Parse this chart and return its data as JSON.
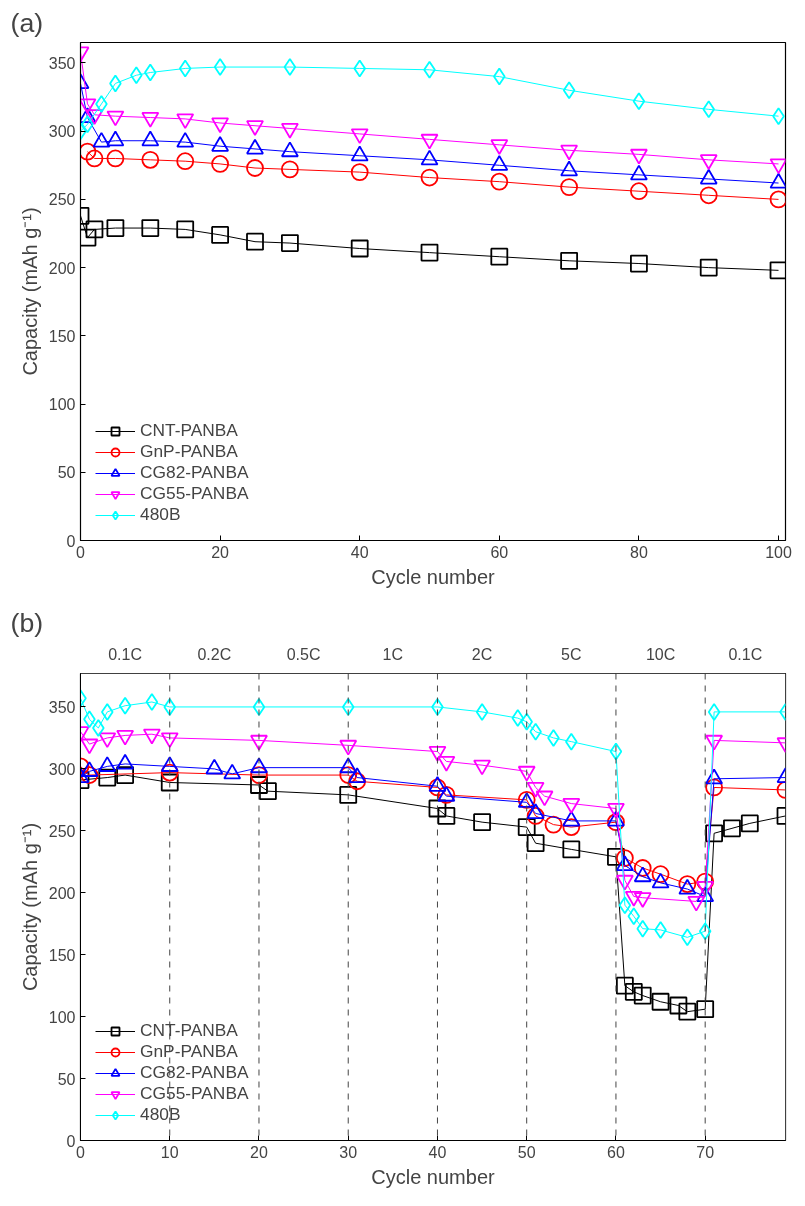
{
  "chart_data": [
    {
      "type": "line",
      "title": "(a)",
      "xlabel": "Cycle number",
      "ylabel": "Capacity (mAh g⁻¹)",
      "xlim": [
        0,
        101
      ],
      "ylim": [
        0,
        365
      ],
      "xticks": [
        0,
        20,
        40,
        60,
        80,
        100
      ],
      "yticks": [
        0,
        50,
        100,
        150,
        200,
        250,
        300,
        350
      ],
      "grid": false,
      "legend": "bottom left",
      "line_style": "solid",
      "series": [
        {
          "name": "CNT-PANBA",
          "color": "#000000",
          "marker": "square",
          "x": [
            0,
            1,
            2,
            5,
            10,
            15,
            20,
            25,
            30,
            40,
            50,
            60,
            70,
            80,
            90,
            100
          ],
          "values": [
            238,
            222,
            228,
            229,
            229,
            228,
            224,
            219,
            218,
            214,
            211,
            208,
            205,
            203,
            200,
            198
          ]
        },
        {
          "name": "GnP-PANBA",
          "color": "#ff0000",
          "marker": "circle",
          "x": [
            1,
            2,
            5,
            10,
            15,
            20,
            25,
            30,
            40,
            50,
            60,
            70,
            80,
            90,
            100
          ],
          "values": [
            285,
            280,
            280,
            279,
            278,
            276,
            273,
            272,
            270,
            266,
            263,
            259,
            256,
            253,
            250
          ]
        },
        {
          "name": "CG82-PANBA",
          "color": "#0000ff",
          "marker": "triangle",
          "x": [
            0,
            1,
            3,
            5,
            10,
            15,
            20,
            25,
            30,
            40,
            50,
            60,
            70,
            80,
            90,
            100
          ],
          "values": [
            335,
            310,
            292,
            293,
            293,
            292,
            289,
            287,
            285,
            282,
            279,
            275,
            271,
            268,
            265,
            262
          ]
        },
        {
          "name": "CG55-PANBA",
          "color": "#ff00ff",
          "marker": "triangle_down",
          "x": [
            0,
            1,
            2,
            5,
            10,
            15,
            20,
            25,
            30,
            40,
            50,
            60,
            70,
            80,
            90,
            100
          ],
          "values": [
            358,
            320,
            312,
            311,
            310,
            309,
            306,
            304,
            302,
            298,
            294,
            290,
            286,
            283,
            279,
            276
          ]
        },
        {
          "name": "480B",
          "color": "#00ffff",
          "marker": "diamond",
          "x": [
            0,
            1,
            3,
            5,
            8,
            10,
            15,
            20,
            30,
            40,
            50,
            60,
            70,
            80,
            90,
            100
          ],
          "values": [
            300,
            305,
            320,
            335,
            341,
            343,
            346,
            347,
            347,
            346,
            345,
            340,
            330,
            322,
            316,
            311
          ]
        }
      ]
    },
    {
      "type": "line",
      "title": "(b)",
      "xlabel": "Cycle number",
      "ylabel": "Capacity (mAh g⁻¹)",
      "xlim": [
        0,
        79
      ],
      "ylim": [
        0,
        377
      ],
      "xticks": [
        0,
        10,
        20,
        30,
        40,
        50,
        60,
        70
      ],
      "yticks": [
        0,
        50,
        100,
        150,
        200,
        250,
        300,
        350
      ],
      "grid": false,
      "legend": "bottom left",
      "line_style": "solid",
      "ref_lines": [
        {
          "axis": "x",
          "value": 10,
          "line_style": "dashed"
        },
        {
          "axis": "x",
          "value": 20,
          "line_style": "dashed"
        },
        {
          "axis": "x",
          "value": 30,
          "line_style": "dashed"
        },
        {
          "axis": "x",
          "value": 40,
          "line_style": "dashed"
        },
        {
          "axis": "x",
          "value": 50,
          "line_style": "dashed"
        },
        {
          "axis": "x",
          "value": 60,
          "line_style": "dashed"
        },
        {
          "axis": "x",
          "value": 70,
          "line_style": "dashed"
        }
      ],
      "bands": [
        {
          "axis": "x",
          "from": 0,
          "to": 10,
          "label": "0.1C",
          "color": "#ffffff"
        },
        {
          "axis": "x",
          "from": 10,
          "to": 20,
          "label": "0.2C",
          "color": "#ffffff"
        },
        {
          "axis": "x",
          "from": 20,
          "to": 30,
          "label": "0.5C",
          "color": "#ffffff"
        },
        {
          "axis": "x",
          "from": 30,
          "to": 40,
          "label": "1C",
          "color": "#ffffff"
        },
        {
          "axis": "x",
          "from": 40,
          "to": 50,
          "label": "2C",
          "color": "#ffffff"
        },
        {
          "axis": "x",
          "from": 50,
          "to": 60,
          "label": "5C",
          "color": "#ffffff"
        },
        {
          "axis": "x",
          "from": 60,
          "to": 70,
          "label": "10C",
          "color": "#ffffff"
        },
        {
          "axis": "x",
          "from": 70,
          "to": 79,
          "label": "0.1C",
          "color": "#ffffff"
        }
      ],
      "series": [
        {
          "name": "CNT-PANBA",
          "color": "#000000",
          "marker": "square",
          "x": [
            0,
            3,
            5,
            10,
            20,
            21,
            30,
            40,
            41,
            45,
            50,
            51,
            55,
            60,
            61,
            62,
            63,
            65,
            67,
            68,
            70,
            71,
            73,
            75,
            79
          ],
          "values": [
            291,
            293,
            295,
            289,
            287,
            282,
            279,
            268,
            262,
            257,
            253,
            240,
            235,
            229,
            125,
            120,
            117,
            112,
            109,
            104,
            106,
            248,
            252,
            256,
            262
          ]
        },
        {
          "name": "GnP-PANBA",
          "color": "#ff0000",
          "marker": "circle",
          "x": [
            0,
            1,
            10,
            20,
            30,
            31,
            40,
            41,
            50,
            51,
            53,
            55,
            60,
            61,
            63,
            65,
            68,
            70,
            71,
            79
          ],
          "values": [
            302,
            295,
            297,
            295,
            295,
            290,
            285,
            279,
            275,
            262,
            255,
            253,
            257,
            228,
            220,
            215,
            207,
            209,
            285,
            283
          ]
        },
        {
          "name": "CG82-PANBA",
          "color": "#0000ff",
          "marker": "triangle",
          "x": [
            0,
            1,
            3,
            5,
            10,
            15,
            17,
            20,
            30,
            31,
            40,
            41,
            50,
            51,
            55,
            60,
            61,
            63,
            65,
            68,
            70,
            71,
            79
          ],
          "values": [
            293,
            298,
            302,
            304,
            302,
            300,
            296,
            301,
            301,
            293,
            286,
            278,
            273,
            264,
            258,
            258,
            222,
            213,
            208,
            203,
            197,
            292,
            293
          ]
        },
        {
          "name": "CG55-PANBA",
          "color": "#ff00ff",
          "marker": "triangle_down",
          "x": [
            0,
            1,
            3,
            5,
            8,
            10,
            20,
            30,
            40,
            41,
            45,
            50,
            51,
            52,
            55,
            60,
            61,
            62,
            63,
            69,
            70,
            71,
            79
          ],
          "values": [
            330,
            320,
            325,
            327,
            328,
            325,
            323,
            319,
            314,
            306,
            303,
            298,
            285,
            278,
            272,
            268,
            210,
            197,
            196,
            193,
            205,
            323,
            321
          ]
        },
        {
          "name": "480B",
          "color": "#00ffff",
          "marker": "diamond",
          "x": [
            0,
            1,
            2,
            3,
            5,
            8,
            10,
            20,
            30,
            40,
            45,
            49,
            50,
            51,
            53,
            55,
            60,
            61,
            62,
            63,
            65,
            68,
            70,
            71,
            79
          ],
          "values": [
            357,
            340,
            333,
            346,
            351,
            354,
            350,
            350,
            350,
            350,
            346,
            341,
            338,
            330,
            325,
            322,
            314,
            190,
            181,
            171,
            170,
            164,
            169,
            346,
            346
          ]
        }
      ]
    }
  ]
}
